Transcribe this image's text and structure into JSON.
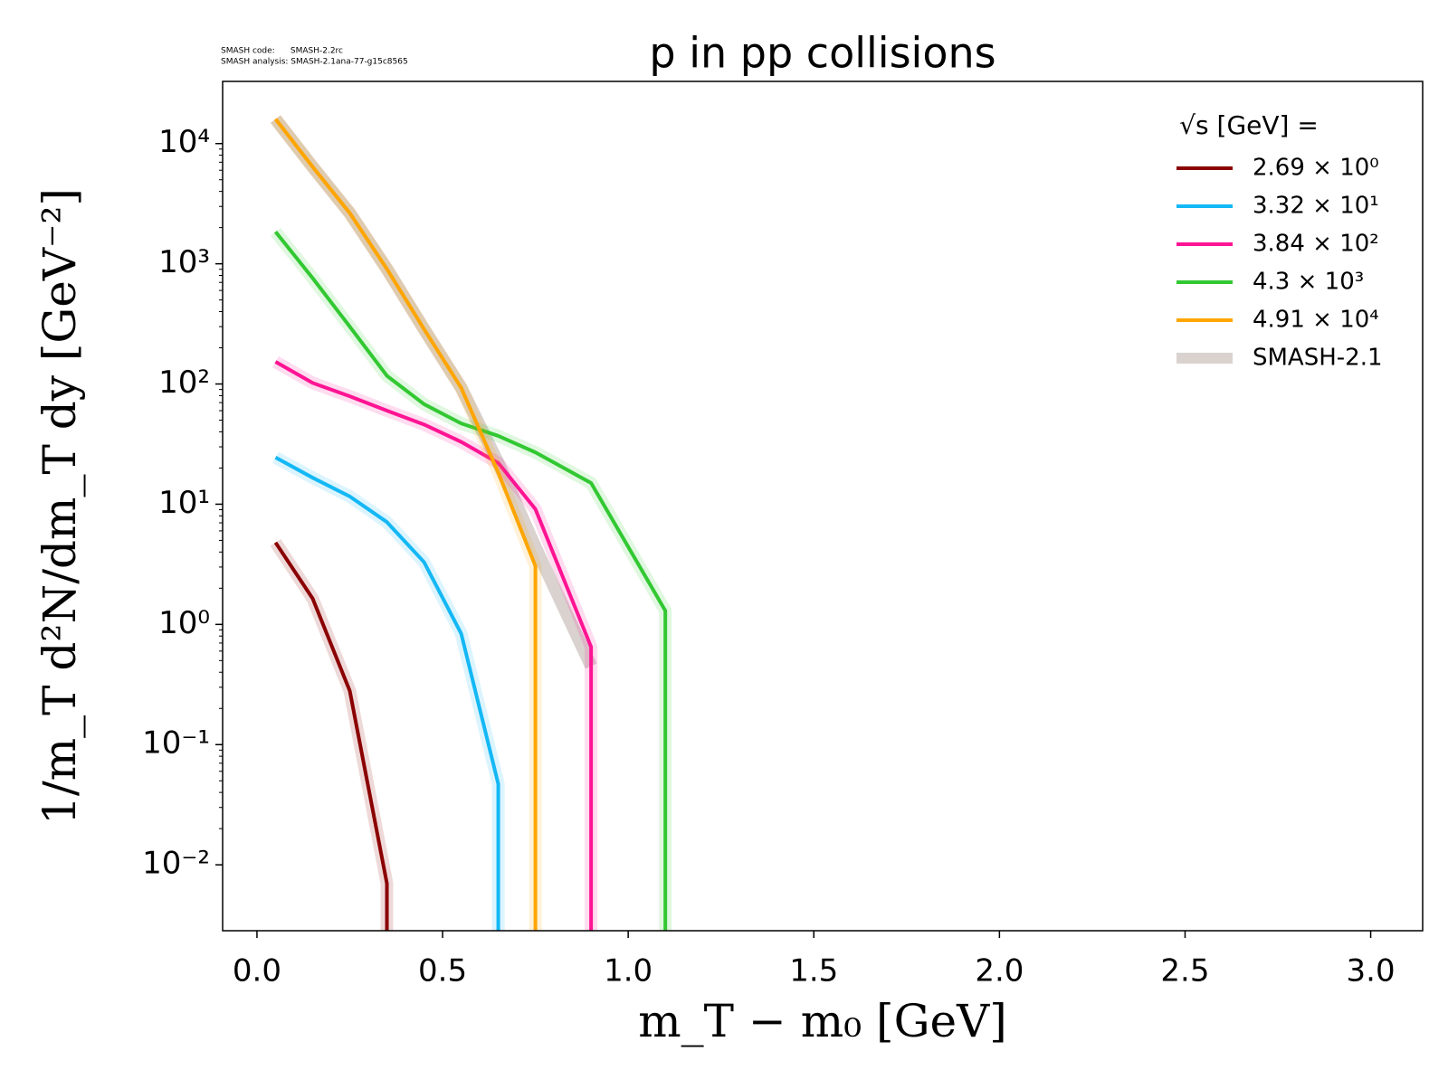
{
  "chart_data": {
    "type": "line",
    "title": "p in pp collisions",
    "annotations": [
      "SMASH code:      SMASH-2.2rc",
      "SMASH analysis: SMASH-2.1ana-77-g15c8565"
    ],
    "x_label": "m_T − m₀ [GeV]",
    "y_label": "1/m_T d²N/dm_T dy [GeV⁻²]",
    "legend_title": "√s [GeV] =",
    "legend_position": "upper right",
    "log_y": true,
    "xlim": [
      -0.0925,
      3.14
    ],
    "xticks": [
      {
        "value": 0,
        "label": "0.0"
      },
      0.5,
      {
        "value": 1,
        "label": "1.0"
      },
      1.5,
      {
        "value": 2,
        "label": "2.0"
      },
      2.5,
      {
        "value": 3,
        "label": "3.0"
      }
    ],
    "ylim": [
      0.00283,
      32900
    ],
    "yticks": [
      {
        "value": 0.01,
        "label": "10⁻²"
      },
      {
        "value": 0.1,
        "label": "10⁻¹"
      },
      {
        "value": 1,
        "label": "10⁰"
      },
      {
        "value": 10,
        "label": "10¹"
      },
      {
        "value": 100,
        "label": "10²"
      },
      {
        "value": 1000,
        "label": "10³"
      },
      {
        "value": 10000,
        "label": "10⁴"
      }
    ],
    "series": [
      {
        "name": "SMASH-2.1",
        "color": "#d9d2cf",
        "width": 14,
        "x": [
          0.05,
          0.15,
          0.25,
          0.35,
          0.45,
          0.55,
          0.65,
          0.75,
          0.9
        ],
        "values": [
          16000,
          6400,
          2640,
          906,
          286,
          93,
          22,
          4.4,
          0.45
        ]
      },
      {
        "name": "2.69 × 10⁰",
        "color": "#8b0000",
        "width": 4,
        "x": [
          0.05,
          0.15,
          0.25,
          0.35,
          0.35
        ],
        "values": [
          4.8,
          1.64,
          0.28,
          0.007,
          0
        ]
      },
      {
        "name": "3.32 × 10¹",
        "color": "#14b8f5",
        "width": 4,
        "x": [
          0.05,
          0.15,
          0.25,
          0.35,
          0.45,
          0.55,
          0.65,
          0.65
        ],
        "values": [
          24.5,
          16.6,
          11.6,
          7.1,
          3.3,
          0.84,
          0.047,
          0
        ]
      },
      {
        "name": "3.84 × 10²",
        "color": "#ff1493",
        "width": 4,
        "x": [
          0.05,
          0.15,
          0.25,
          0.35,
          0.45,
          0.55,
          0.65,
          0.75,
          0.9,
          0.9
        ],
        "values": [
          153,
          102,
          79,
          60,
          46,
          33,
          22,
          9.1,
          0.65,
          0
        ]
      },
      {
        "name": "4.3 × 10³",
        "color": "#32c832",
        "width": 4,
        "x": [
          0.05,
          0.15,
          0.25,
          0.35,
          0.45,
          0.55,
          0.65,
          0.75,
          0.9,
          1.1,
          1.1
        ],
        "values": [
          1845,
          760,
          300,
          117,
          68,
          47,
          37,
          27,
          15,
          1.3,
          0
        ]
      },
      {
        "name": "4.91 × 10⁴",
        "color": "#ffa500",
        "width": 4,
        "x": [
          0.05,
          0.15,
          0.25,
          0.35,
          0.45,
          0.55,
          0.65,
          0.75,
          0.75
        ],
        "values": [
          16000,
          6400,
          2640,
          906,
          286,
          93,
          18.3,
          3.06,
          0
        ]
      }
    ]
  }
}
